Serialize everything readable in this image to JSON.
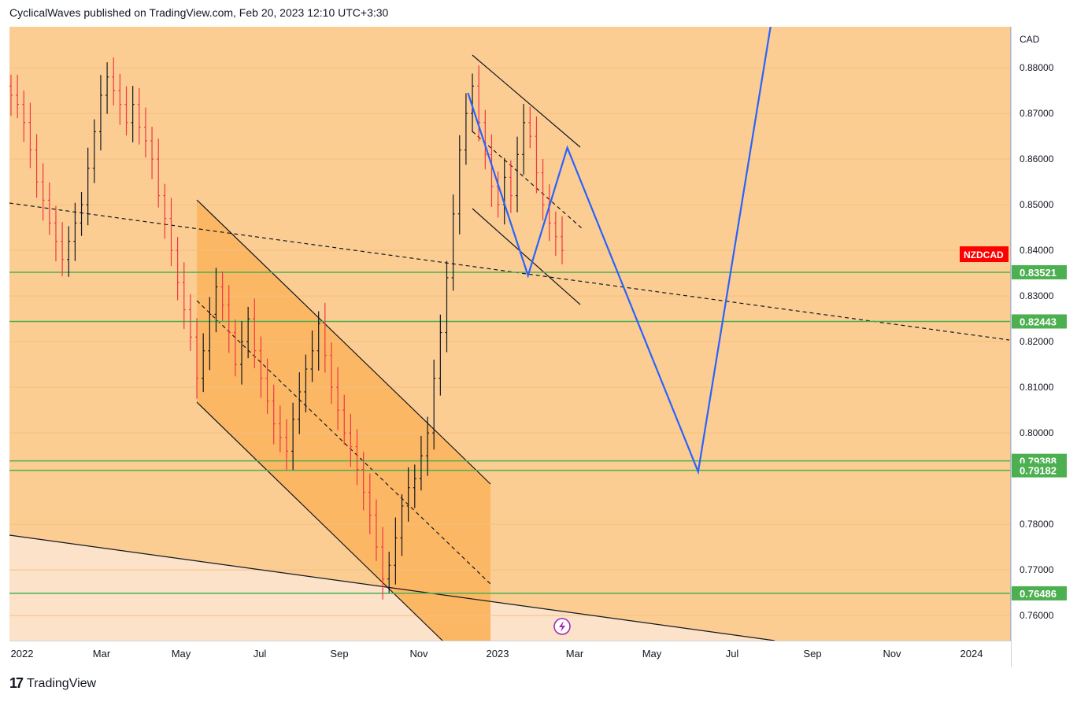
{
  "header": {
    "text": "CyclicalWaves published on TradingView.com, Feb 20, 2023 12:10 UTC+3:30"
  },
  "footer": {
    "brand": "TradingView",
    "logo": "17"
  },
  "symbol_label": "NZDCAD",
  "currency_label": "CAD",
  "colors": {
    "bg": "#fbcd92",
    "channel": "#fbb764",
    "lower_zone": "#fbe2c8",
    "candle_up": "#131722",
    "candle_down": "#f23645",
    "support": "#4caf50",
    "projection": "#2962ff",
    "tag": "#ff0000"
  },
  "chart_data": {
    "type": "candlestick",
    "pair": "NZDCAD",
    "x_ticks": [
      "2022",
      "Mar",
      "May",
      "Jul",
      "Sep",
      "Nov",
      "2023",
      "Mar",
      "May",
      "Jul",
      "Sep",
      "Nov",
      "2024"
    ],
    "y_ticks": [
      "0.88000",
      "0.87000",
      "0.86000",
      "0.85000",
      "0.84000",
      "0.83000",
      "0.82000",
      "0.81000",
      "0.80000",
      "0.78000",
      "0.77000",
      "0.76000"
    ],
    "y_range": [
      0.7545,
      0.889
    ],
    "support_levels": [
      {
        "label": "0.83521",
        "value": 0.83521
      },
      {
        "label": "0.82443",
        "value": 0.82443
      },
      {
        "label": "0.79388",
        "value": 0.79388
      },
      {
        "label": "0.79182",
        "value": 0.79182
      },
      {
        "label": "0.76486",
        "value": 0.76486
      }
    ],
    "closes": [
      0.874,
      0.872,
      0.868,
      0.862,
      0.855,
      0.851,
      0.846,
      0.842,
      0.838,
      0.842,
      0.846,
      0.85,
      0.858,
      0.866,
      0.874,
      0.878,
      0.875,
      0.872,
      0.868,
      0.872,
      0.867,
      0.864,
      0.86,
      0.852,
      0.847,
      0.84,
      0.833,
      0.827,
      0.821,
      0.812,
      0.818,
      0.826,
      0.832,
      0.828,
      0.822,
      0.815,
      0.82,
      0.825,
      0.818,
      0.812,
      0.807,
      0.802,
      0.799,
      0.796,
      0.803,
      0.809,
      0.814,
      0.818,
      0.824,
      0.817,
      0.81,
      0.805,
      0.8,
      0.797,
      0.792,
      0.787,
      0.782,
      0.775,
      0.768,
      0.771,
      0.777,
      0.784,
      0.788,
      0.79,
      0.795,
      0.8,
      0.812,
      0.822,
      0.834,
      0.848,
      0.862,
      0.87,
      0.876,
      0.868,
      0.861,
      0.854,
      0.85,
      0.856,
      0.852,
      0.861,
      0.868,
      0.865,
      0.857,
      0.85,
      0.846,
      0.843,
      0.84
    ],
    "projection_path": [
      {
        "date": "2022-12-14",
        "value": 0.8745
      },
      {
        "date": "2023-01-30",
        "value": 0.8345
      },
      {
        "date": "2023-02-27",
        "value": 0.8625
      },
      {
        "date": "2023-06-08",
        "value": 0.7915
      },
      {
        "date": "2023-08-03",
        "value": 0.8892
      }
    ]
  }
}
